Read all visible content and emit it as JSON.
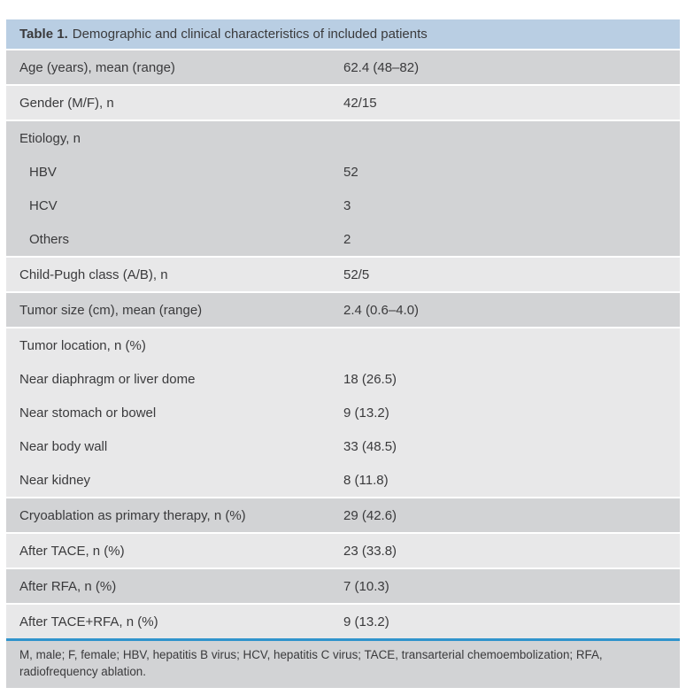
{
  "header": {
    "label": "Table 1.",
    "title": "Demographic and clinical characteristics of included patients"
  },
  "blocks": [
    {
      "shade": "dark",
      "rows": [
        {
          "label": "Age (years), mean (range)",
          "value": "62.4 (48–82)",
          "indent": false
        }
      ]
    },
    {
      "shade": "light",
      "rows": [
        {
          "label": "Gender (M/F), n",
          "value": "42/15",
          "indent": false
        }
      ]
    },
    {
      "shade": "dark",
      "rows": [
        {
          "label": "Etiology, n",
          "value": "",
          "indent": false
        },
        {
          "label": "HBV",
          "value": "52",
          "indent": true
        },
        {
          "label": "HCV",
          "value": "3",
          "indent": true
        },
        {
          "label": "Others",
          "value": "2",
          "indent": true
        }
      ]
    },
    {
      "shade": "light",
      "rows": [
        {
          "label": "Child-Pugh class (A/B), n",
          "value": "52/5",
          "indent": false
        }
      ]
    },
    {
      "shade": "dark",
      "rows": [
        {
          "label": "Tumor size (cm), mean (range)",
          "value": "2.4 (0.6–4.0)",
          "indent": false
        }
      ]
    },
    {
      "shade": "light",
      "rows": [
        {
          "label": "Tumor location, n (%)",
          "value": "",
          "indent": false
        },
        {
          "label": "Near diaphragm or liver dome",
          "value": "18 (26.5)",
          "indent": false
        },
        {
          "label": "Near stomach or bowel",
          "value": "9 (13.2)",
          "indent": false
        },
        {
          "label": "Near body wall",
          "value": "33 (48.5)",
          "indent": false
        },
        {
          "label": "Near kidney",
          "value": "8 (11.8)",
          "indent": false
        }
      ]
    },
    {
      "shade": "dark",
      "rows": [
        {
          "label": "Cryoablation as primary therapy, n (%)",
          "value": "29 (42.6)",
          "indent": false
        }
      ]
    },
    {
      "shade": "light",
      "rows": [
        {
          "label": "After TACE, n (%)",
          "value": "23 (33.8)",
          "indent": false
        }
      ]
    },
    {
      "shade": "dark",
      "rows": [
        {
          "label": "After RFA, n (%)",
          "value": "7 (10.3)",
          "indent": false
        }
      ]
    },
    {
      "shade": "light",
      "rows": [
        {
          "label": "After TACE+RFA, n (%)",
          "value": "9 (13.2)",
          "indent": false
        }
      ]
    }
  ],
  "footnote": "M, male; F, female; HBV, hepatitis B virus; HCV, hepatitis C virus; TACE, transarterial chemoembolization; RFA, radiofrequency ablation.",
  "colors": {
    "page_bg": "#ffffff",
    "header_bg": "#b9cee3",
    "row_dark": "#d2d3d5",
    "row_light": "#e8e8e9",
    "footnote_bg": "#d2d3d5",
    "divider": "#3094cc",
    "text": "#3a3a3c",
    "separator": "#ffffff"
  }
}
